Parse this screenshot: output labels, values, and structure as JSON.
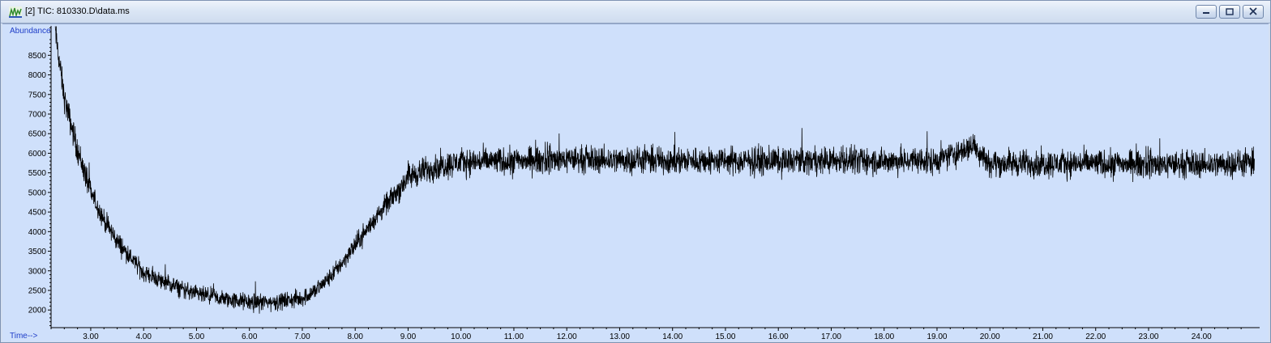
{
  "window": {
    "title": "[2] TIC: 810330.D\\data.ms",
    "buttons": [
      "minimize",
      "restore",
      "close"
    ],
    "colors": {
      "plot_background": "#cfe0fb",
      "axis_label": "#1f3ec8",
      "trace": "#000000"
    }
  },
  "chart_data": {
    "type": "line",
    "title": "",
    "ylabel": "Abundance",
    "xlabel": "Time-->",
    "xlim": [
      2.25,
      25.1
    ],
    "ylim": [
      1550,
      9250
    ],
    "x_ticks": [
      3.0,
      4.0,
      5.0,
      6.0,
      7.0,
      8.0,
      9.0,
      10.0,
      11.0,
      12.0,
      13.0,
      14.0,
      15.0,
      16.0,
      17.0,
      18.0,
      19.0,
      20.0,
      21.0,
      22.0,
      23.0,
      24.0
    ],
    "x_tick_labels": [
      "3.00",
      "4.00",
      "5.00",
      "6.00",
      "7.00",
      "8.00",
      "9.00",
      "10.00",
      "11.00",
      "12.00",
      "13.00",
      "14.00",
      "15.00",
      "16.00",
      "17.00",
      "18.00",
      "19.00",
      "20.00",
      "21.00",
      "22.00",
      "23.00",
      "24.00"
    ],
    "y_ticks": [
      2000,
      2500,
      3000,
      3500,
      4000,
      4500,
      5000,
      5500,
      6000,
      6500,
      7000,
      7500,
      8000,
      8500
    ],
    "y_tick_labels": [
      "2000",
      "2500",
      "3000",
      "3500",
      "4000",
      "4500",
      "5000",
      "5500",
      "6000",
      "6500",
      "7000",
      "7500",
      "8000",
      "8500"
    ],
    "grid": false,
    "series": [
      {
        "color": "#000000",
        "x": [
          2.33,
          2.5,
          2.75,
          3.0,
          3.25,
          3.5,
          3.75,
          4.0,
          4.5,
          5.0,
          5.5,
          6.0,
          6.5,
          7.0,
          7.25,
          7.5,
          7.75,
          8.0,
          8.25,
          8.5,
          8.75,
          9.0,
          9.5,
          10.0,
          11.0,
          12.0,
          13.0,
          14.0,
          15.0,
          16.0,
          17.0,
          18.0,
          19.0,
          19.7,
          20.0,
          21.0,
          22.0,
          23.0,
          24.0,
          25.0
        ],
        "y": [
          9100,
          7400,
          6100,
          5000,
          4300,
          3750,
          3350,
          2950,
          2650,
          2400,
          2280,
          2200,
          2200,
          2300,
          2500,
          2800,
          3200,
          3650,
          4100,
          4550,
          4950,
          5400,
          5650,
          5780,
          5800,
          5850,
          5830,
          5820,
          5800,
          5800,
          5820,
          5800,
          5800,
          6200,
          5750,
          5740,
          5740,
          5720,
          5720,
          5750
        ]
      }
    ]
  }
}
